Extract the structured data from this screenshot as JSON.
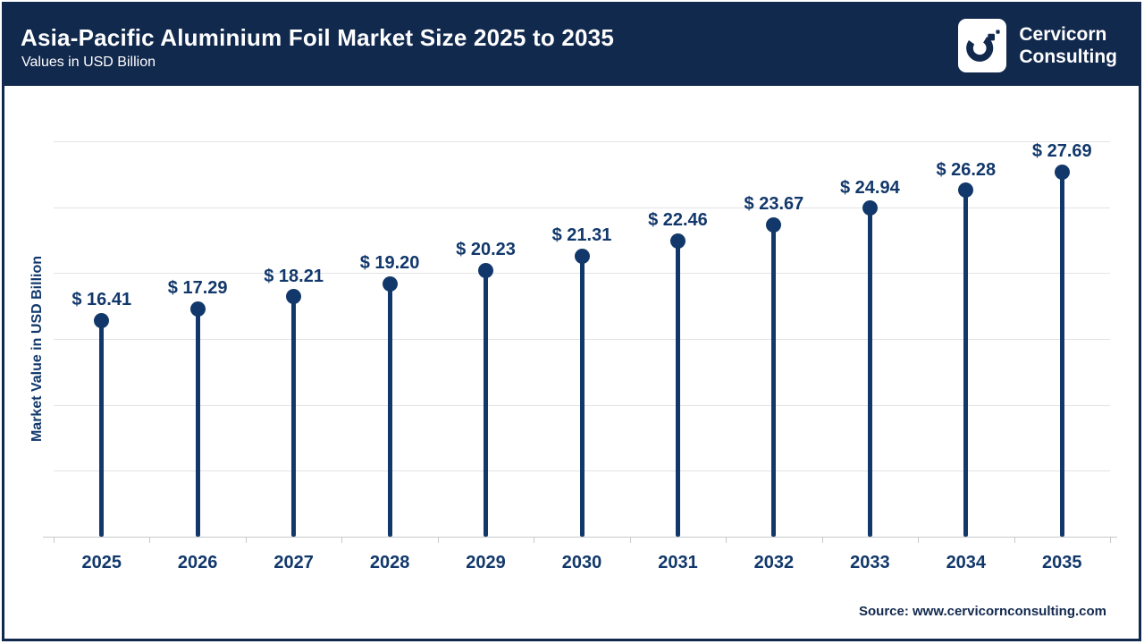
{
  "header": {
    "title": "Asia-Pacific Aluminium Foil Market Size 2025 to 2035",
    "subtitle": "Values in USD Billion"
  },
  "logo": {
    "icon": "cervicorn-c-logo",
    "line1": "Cervicorn",
    "line2": "Consulting"
  },
  "chart_data": {
    "type": "lollipop",
    "title": "Asia-Pacific Aluminium Foil Market Size 2025 to 2035",
    "subtitle": "Values in USD Billion",
    "categories": [
      "2025",
      "2026",
      "2027",
      "2028",
      "2029",
      "2030",
      "2031",
      "2032",
      "2033",
      "2034",
      "2035"
    ],
    "values": [
      16.41,
      17.29,
      18.21,
      19.2,
      20.23,
      21.31,
      22.46,
      23.67,
      24.94,
      26.28,
      27.69
    ],
    "value_prefix": "$ ",
    "xlabel": "",
    "ylabel": "Market Value in USD Billion",
    "ylim": [
      0,
      32
    ],
    "gridline_values": [
      5,
      10,
      15,
      20,
      25,
      30
    ],
    "grid": "horizontal-only",
    "legend_position": "none"
  },
  "footer": {
    "source": "Source: www.cervicornconsulting.com"
  },
  "colors": {
    "header_bg": "#12294E",
    "accent": "#12386B",
    "grid": "#E3E3E3",
    "axis": "#C9C9C9",
    "title_text": "#FFFFFF"
  }
}
